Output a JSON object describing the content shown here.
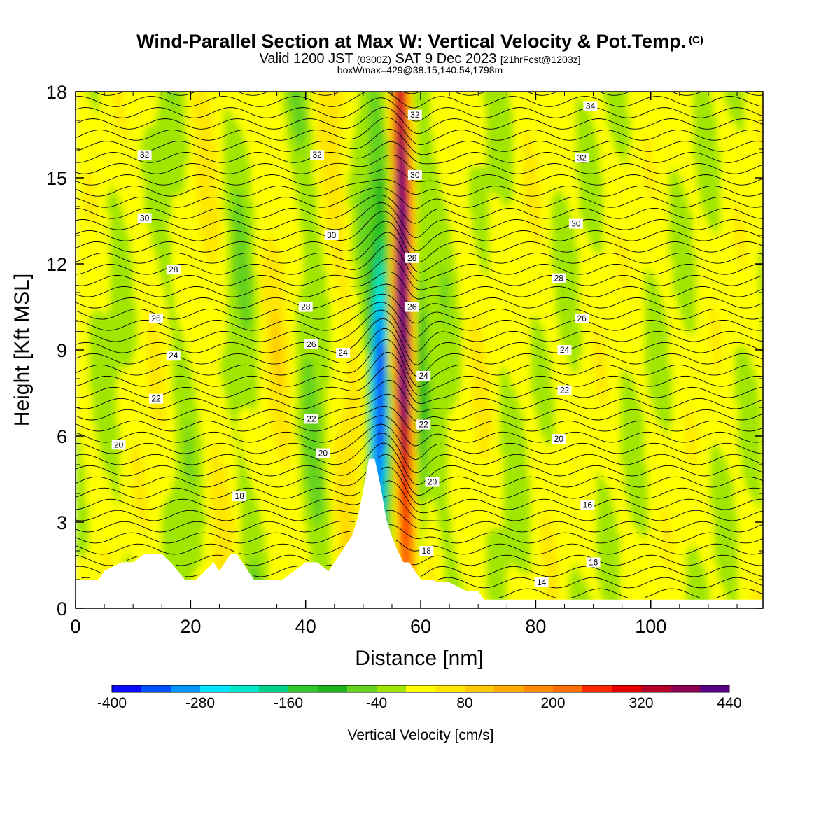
{
  "title": {
    "main": "Wind-Parallel Section at Max W: Vertical Velocity & Pot.Temp.",
    "copyright": "(C)",
    "valid_prefix": "Valid 1200 JST",
    "valid_utc": "(0300Z)",
    "valid_date": "SAT 9 Dec 2023",
    "forecast": "[21hrFcst@1203z]",
    "box_info": "boxWmax=429@38.15,140.54,1798m"
  },
  "chart_data": {
    "type": "heatmap",
    "xlabel": "Distance [nm]",
    "ylabel": "Height [Kft MSL]",
    "xlim": [
      0,
      119.5
    ],
    "ylim": [
      0,
      18
    ],
    "x_ticks": [
      0,
      20,
      40,
      60,
      80,
      100
    ],
    "y_ticks": [
      0,
      3,
      6,
      9,
      12,
      15,
      18
    ],
    "grid": false,
    "colorbar": {
      "label": "Vertical Velocity [cm/s]",
      "placement": "bottom",
      "tick_labels": [
        -400,
        -280,
        -160,
        -40,
        80,
        200,
        320,
        440
      ],
      "levels": [
        -400,
        -360,
        -320,
        -280,
        -240,
        -200,
        -160,
        -120,
        -80,
        -40,
        0,
        40,
        80,
        120,
        160,
        200,
        240,
        280,
        320,
        360,
        400,
        440
      ],
      "colors": [
        "#0a0aff",
        "#0050ff",
        "#0096ff",
        "#00e6ff",
        "#00e6c8",
        "#00d28c",
        "#2ec82e",
        "#1eb41e",
        "#64d21e",
        "#a0e600",
        "#ffff00",
        "#ffe600",
        "#ffc800",
        "#ffaa00",
        "#ff8c00",
        "#ff6e00",
        "#ff2800",
        "#e60000",
        "#b40028",
        "#8c0050",
        "#5a0082"
      ]
    },
    "max_w": 429,
    "updraft_center_x": 57,
    "downdraft_center_x": 53,
    "terrain": {
      "x": [
        0,
        4,
        5,
        8,
        10,
        12,
        15,
        17,
        19,
        21,
        24,
        25,
        27,
        28,
        30,
        31,
        33,
        36,
        38,
        40,
        42,
        44,
        46,
        48,
        49,
        50,
        51,
        52,
        53,
        54,
        55,
        56,
        57,
        58,
        59,
        60,
        62,
        63,
        65,
        66,
        68,
        70,
        71,
        72,
        119.5
      ],
      "height_kft": [
        1.0,
        1.0,
        1.3,
        1.6,
        1.6,
        1.9,
        1.9,
        1.5,
        1.0,
        1.0,
        1.6,
        1.3,
        1.9,
        1.9,
        1.3,
        1.0,
        1.0,
        1.0,
        1.3,
        1.6,
        1.6,
        1.3,
        1.9,
        2.5,
        3.1,
        4.1,
        5.2,
        5.2,
        4.3,
        3.1,
        2.5,
        2.0,
        1.6,
        1.6,
        1.3,
        1.0,
        1.0,
        0.9,
        0.9,
        0.8,
        0.6,
        0.6,
        0.3,
        0.3,
        0.3
      ]
    },
    "theta_contour_labels": [
      {
        "value": "34",
        "x": 89.5,
        "y": 17.5
      },
      {
        "value": "32",
        "x": 12,
        "y": 15.8
      },
      {
        "value": "32",
        "x": 42,
        "y": 15.8
      },
      {
        "value": "32",
        "x": 59,
        "y": 17.2
      },
      {
        "value": "32",
        "x": 88,
        "y": 15.7
      },
      {
        "value": "30",
        "x": 12,
        "y": 13.6
      },
      {
        "value": "30",
        "x": 44.5,
        "y": 13
      },
      {
        "value": "30",
        "x": 59,
        "y": 15.1
      },
      {
        "value": "30",
        "x": 87,
        "y": 13.4
      },
      {
        "value": "28",
        "x": 17,
        "y": 11.8
      },
      {
        "value": "28",
        "x": 40,
        "y": 10.5
      },
      {
        "value": "28",
        "x": 58.5,
        "y": 12.2
      },
      {
        "value": "28",
        "x": 84,
        "y": 11.5
      },
      {
        "value": "26",
        "x": 14,
        "y": 10.1
      },
      {
        "value": "26",
        "x": 41,
        "y": 9.2
      },
      {
        "value": "26",
        "x": 58.5,
        "y": 10.5
      },
      {
        "value": "26",
        "x": 88,
        "y": 10.1
      },
      {
        "value": "24",
        "x": 17,
        "y": 8.8
      },
      {
        "value": "24",
        "x": 46.5,
        "y": 8.9
      },
      {
        "value": "24",
        "x": 60.5,
        "y": 8.1
      },
      {
        "value": "24",
        "x": 85,
        "y": 9.0
      },
      {
        "value": "22",
        "x": 14,
        "y": 7.3
      },
      {
        "value": "22",
        "x": 41,
        "y": 6.6
      },
      {
        "value": "22",
        "x": 60.5,
        "y": 6.4
      },
      {
        "value": "22",
        "x": 85,
        "y": 7.6
      },
      {
        "value": "20",
        "x": 7.5,
        "y": 5.7
      },
      {
        "value": "20",
        "x": 43,
        "y": 5.4
      },
      {
        "value": "20",
        "x": 62,
        "y": 4.4
      },
      {
        "value": "20",
        "x": 84,
        "y": 5.9
      },
      {
        "value": "18",
        "x": 28.5,
        "y": 3.9
      },
      {
        "value": "18",
        "x": 61,
        "y": 2.0
      },
      {
        "value": "16",
        "x": 90,
        "y": 1.6
      },
      {
        "value": "16",
        "x": 89,
        "y": 3.6
      },
      {
        "value": "14",
        "x": 81,
        "y": 0.9
      }
    ]
  }
}
